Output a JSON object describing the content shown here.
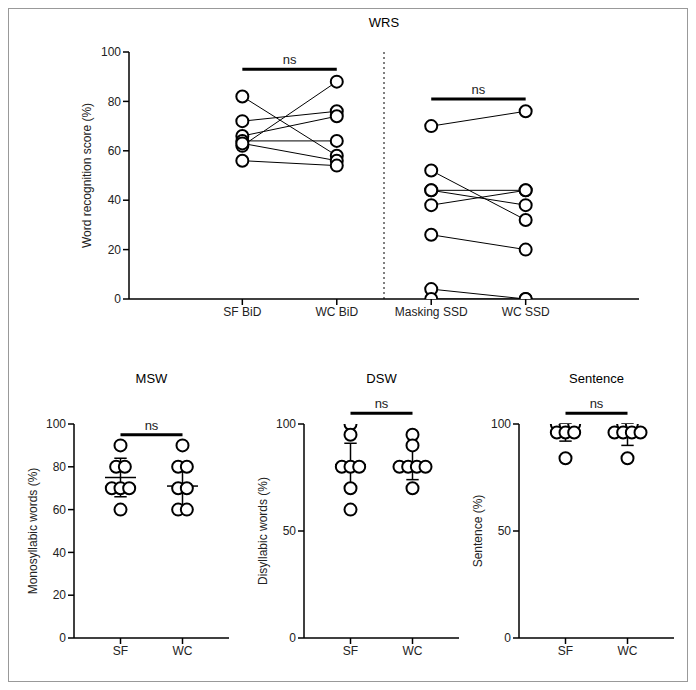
{
  "chart_data": [
    {
      "type": "line",
      "title": "WRS",
      "y_label": "Word recognition score (%)",
      "categories": [
        "SF BiD",
        "WC BiD",
        "Masking SSD",
        "WC SSD"
      ],
      "ylim": [
        0,
        100
      ],
      "yticks": [
        0,
        20,
        40,
        60,
        80,
        100
      ],
      "marker": "circle",
      "color": "#000000",
      "series": [
        {
          "values": [
            82,
            58,
            null,
            null
          ]
        },
        {
          "values": [
            72,
            76,
            null,
            null
          ]
        },
        {
          "values": [
            66,
            74,
            null,
            null
          ]
        },
        {
          "values": [
            64,
            64,
            null,
            null
          ]
        },
        {
          "values": [
            62,
            88,
            null,
            null
          ]
        },
        {
          "values": [
            63,
            56,
            null,
            null
          ]
        },
        {
          "values": [
            56,
            54,
            null,
            null
          ]
        },
        {
          "values": [
            null,
            null,
            70,
            76
          ]
        },
        {
          "values": [
            null,
            null,
            52,
            32
          ]
        },
        {
          "values": [
            null,
            null,
            44,
            44
          ]
        },
        {
          "values": [
            null,
            null,
            38,
            44
          ]
        },
        {
          "values": [
            null,
            null,
            44,
            38
          ]
        },
        {
          "values": [
            null,
            null,
            26,
            20
          ]
        },
        {
          "values": [
            null,
            null,
            4,
            0
          ]
        },
        {
          "values": [
            null,
            null,
            0,
            0
          ]
        }
      ],
      "annotations": [
        {
          "text": "ns",
          "between": [
            "SF BiD",
            "WC BiD"
          ]
        },
        {
          "text": "ns",
          "between": [
            "Masking SSD",
            "WC SSD"
          ]
        }
      ]
    },
    {
      "type": "scatter",
      "title": "MSW",
      "y_label": "Monosyllabic words (%)",
      "categories": [
        "SF",
        "WC"
      ],
      "ylim": [
        0,
        100
      ],
      "yticks": [
        0,
        20,
        40,
        60,
        80,
        100
      ],
      "marker": "circle",
      "color": "#000000",
      "groups": [
        {
          "values": [
            90,
            80,
            80,
            70,
            70,
            70,
            60
          ],
          "mean": 75,
          "sd": 9
        },
        {
          "values": [
            90,
            80,
            80,
            70,
            70,
            60,
            60
          ],
          "mean": 71,
          "sd": 10
        }
      ],
      "annotations": [
        {
          "text": "ns",
          "between": [
            "SF",
            "WC"
          ]
        }
      ]
    },
    {
      "type": "scatter",
      "title": "DSW",
      "y_label": "Disyllabic words (%)",
      "categories": [
        "SF",
        "WC"
      ],
      "ylim": [
        0,
        100
      ],
      "yticks": [
        0,
        50,
        100
      ],
      "marker": "circle",
      "color": "#000000",
      "groups": [
        {
          "values": [
            100,
            95,
            80,
            80,
            80,
            70,
            60
          ],
          "mean": 81,
          "sd": 10
        },
        {
          "values": [
            95,
            90,
            80,
            80,
            80,
            80,
            70
          ],
          "mean": 82,
          "sd": 8
        }
      ],
      "annotations": [
        {
          "text": "ns",
          "between": [
            "SF",
            "WC"
          ]
        }
      ]
    },
    {
      "type": "scatter",
      "title": "Sentence",
      "y_label": "Sentence (%)",
      "categories": [
        "SF",
        "WC"
      ],
      "ylim": [
        0,
        100
      ],
      "yticks": [
        0,
        50,
        100
      ],
      "marker": "circle",
      "color": "#000000",
      "groups": [
        {
          "values": [
            100,
            100,
            100,
            96,
            96,
            96,
            84
          ],
          "mean": 96,
          "sd": 4
        },
        {
          "values": [
            100,
            100,
            96,
            96,
            96,
            96,
            84
          ],
          "mean": 95,
          "sd": 5
        }
      ],
      "annotations": [
        {
          "text": "ns",
          "between": [
            "SF",
            "WC"
          ]
        }
      ]
    }
  ]
}
